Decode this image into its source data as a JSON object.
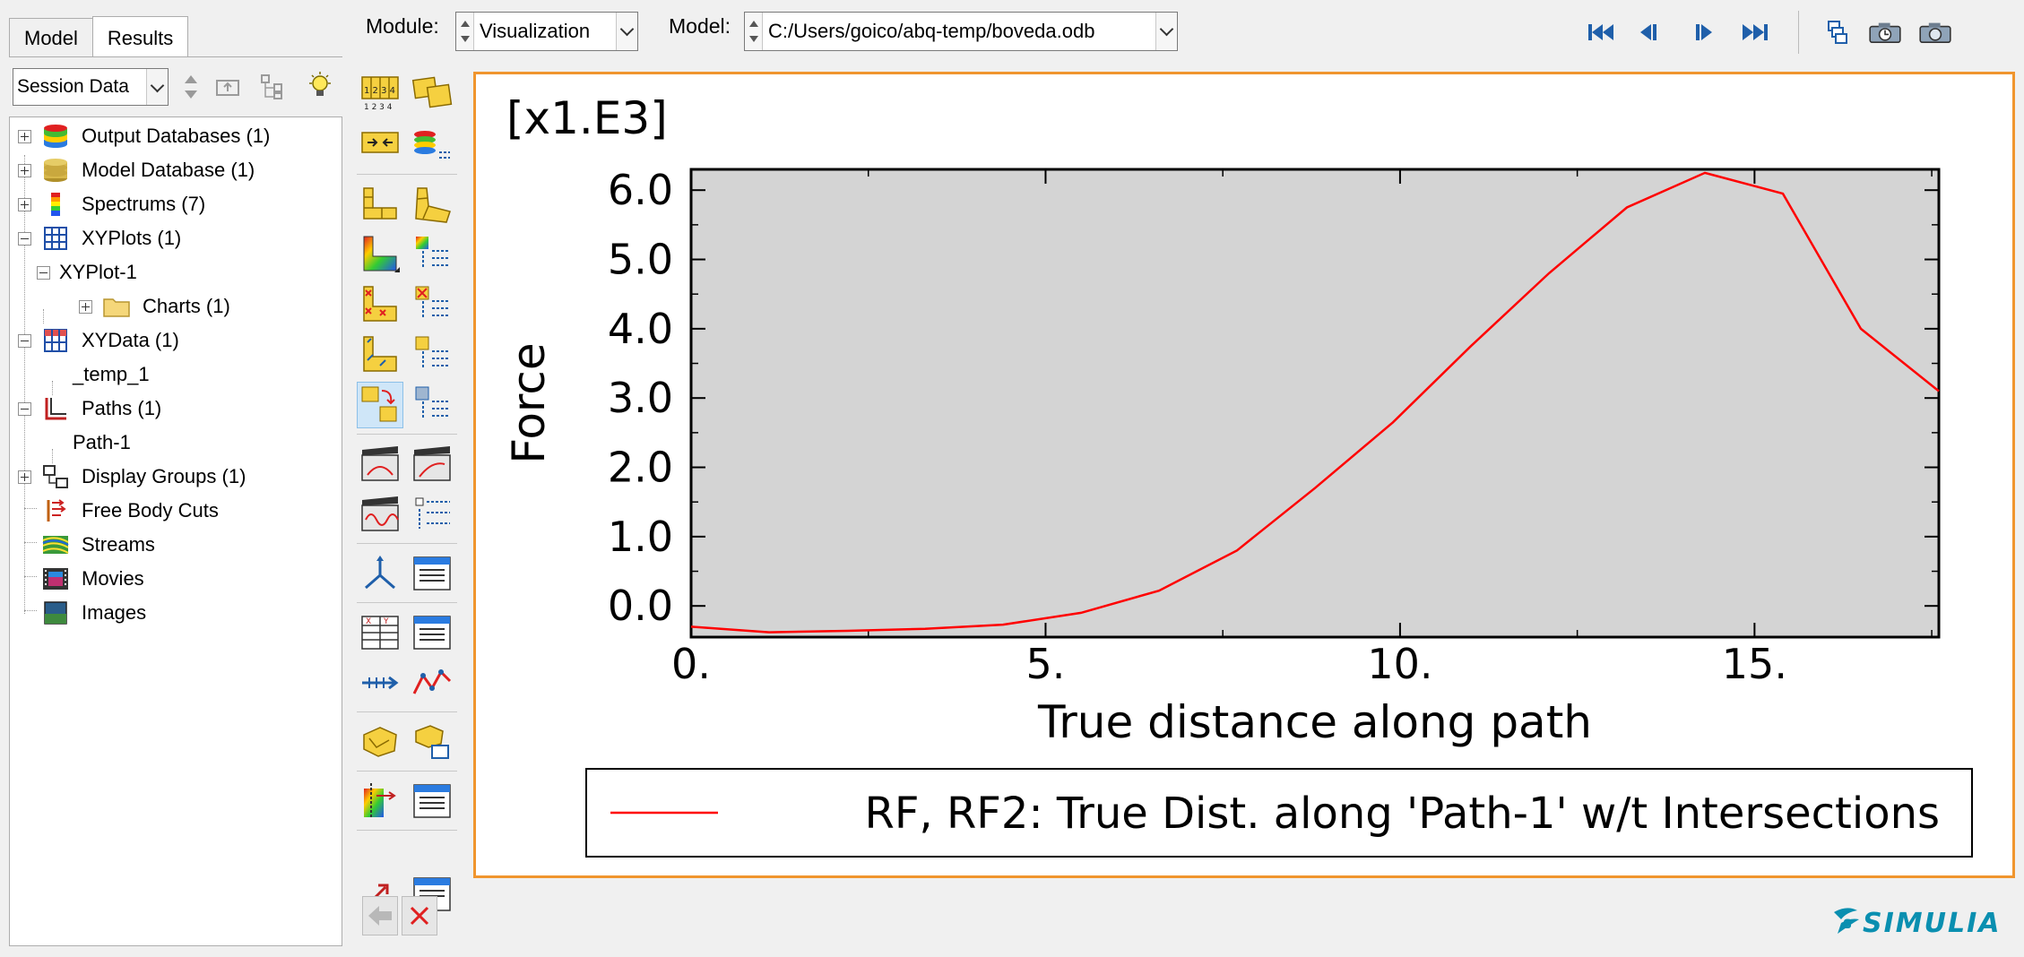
{
  "left_panel": {
    "tabs": [
      {
        "label": "Model",
        "active": false
      },
      {
        "label": "Results",
        "active": true
      }
    ],
    "session_select": {
      "value": "Session Data"
    },
    "tree": [
      {
        "label": "Output Databases (1)",
        "icon": "database-stack-icon"
      },
      {
        "label": "Model Database (1)",
        "icon": "model-database-icon"
      },
      {
        "label": "Spectrums (7)",
        "icon": "spectrum-icon"
      },
      {
        "label": "XYPlots (1)",
        "icon": "xyplots-grid-icon"
      },
      {
        "label": "XYPlot-1",
        "icon": ""
      },
      {
        "label": "Charts (1)",
        "icon": "folder-icon"
      },
      {
        "label": "XYData (1)",
        "icon": "xydata-table-icon"
      },
      {
        "label": "_temp_1",
        "icon": ""
      },
      {
        "label": "Paths (1)",
        "icon": "path-icon"
      },
      {
        "label": "Path-1",
        "icon": ""
      },
      {
        "label": "Display Groups (1)",
        "icon": "display-groups-icon"
      },
      {
        "label": "Free Body Cuts",
        "icon": "free-body-cut-icon"
      },
      {
        "label": "Streams",
        "icon": "streams-icon"
      },
      {
        "label": "Movies",
        "icon": "movie-film-icon"
      },
      {
        "label": "Images",
        "icon": "image-icon"
      }
    ]
  },
  "topbar": {
    "module_label": "Module:",
    "module_value": "Visualization",
    "model_label": "Model:",
    "model_value": "C:/Users/goico/abq-temp/boveda.odb"
  },
  "chart_data": {
    "type": "line",
    "multiplier_label": "[x1.E3]",
    "xlabel": "True distance along path",
    "ylabel": "Force",
    "xlim": [
      0,
      17.6
    ],
    "ylim": [
      -0.45,
      6.3
    ],
    "x_ticks": [
      0,
      5,
      10,
      15
    ],
    "x_tick_labels": [
      "0.",
      "5.",
      "10.",
      "15."
    ],
    "y_ticks": [
      0,
      1,
      2,
      3,
      4,
      5,
      6
    ],
    "y_tick_labels": [
      "0.0",
      "1.0",
      "2.0",
      "3.0",
      "4.0",
      "5.0",
      "6.0"
    ],
    "grid": false,
    "legend_position": "bottom",
    "series": [
      {
        "name": "RF, RF2: True Dist. along 'Path-1' w/t Intersections",
        "color": "#ff0000",
        "x": [
          0,
          1.1,
          2.2,
          3.3,
          4.4,
          5.5,
          6.6,
          7.7,
          8.8,
          9.9,
          11.0,
          12.1,
          13.2,
          14.3,
          15.4,
          16.5,
          17.6
        ],
        "y": [
          -0.3,
          -0.38,
          -0.36,
          -0.33,
          -0.27,
          -0.1,
          0.22,
          0.8,
          1.7,
          2.65,
          3.75,
          4.8,
          5.75,
          6.25,
          5.95,
          4.0,
          3.1
        ]
      }
    ]
  },
  "logo": {
    "text": "SIMULIA"
  },
  "colors": {
    "viewport_border": "#f0952e",
    "plot_background": "#d4d4d4",
    "series_line": "#ff0000"
  }
}
